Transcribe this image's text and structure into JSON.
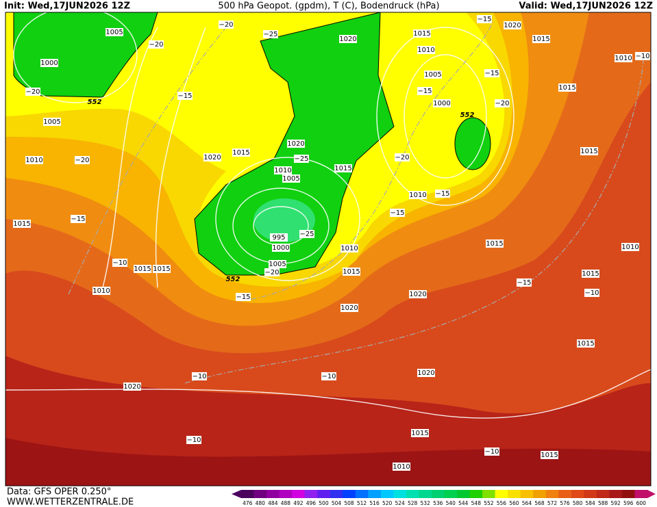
{
  "header": {
    "init": "Init: Wed,17JUN2026 12Z",
    "title": "500 hPa Geopot. (gpdm), T (C), Bodendruck (hPa)",
    "valid": "Valid: Wed,17JUN2026 12Z"
  },
  "footer": {
    "source": "Data: GFS OPER 0.250°",
    "site": "WWW.WETTERZENTRALE.DE"
  },
  "pressure_labels": [
    1005,
    1000,
    1005,
    1010,
    1015,
    1010,
    1015,
    1015,
    1020,
    1015,
    1020,
    1010,
    1005,
    995,
    1000,
    1005,
    1015,
    1020,
    1010,
    1015,
    1020,
    1020,
    1020,
    1015,
    1010,
    1020,
    1015,
    1010,
    1005,
    1000,
    1010,
    1015,
    1020,
    1015,
    1015,
    1015,
    1010,
    1010,
    1015,
    1015,
    1015
  ],
  "temperature_labels": [
    "−20",
    "−25",
    "−20",
    "−20",
    "−15",
    "−20",
    "−15",
    "−10",
    "−25",
    "−25",
    "−20",
    "−15",
    "−15",
    "−15",
    "−15",
    "−20",
    "−20",
    "−15",
    "−15",
    "−15",
    "−10",
    "−10",
    "−10",
    "−10",
    "−10",
    "−10"
  ],
  "geopotential_labels": [
    552,
    552,
    552
  ],
  "colorbar": {
    "labels": [
      476,
      480,
      484,
      488,
      492,
      496,
      500,
      504,
      508,
      512,
      516,
      520,
      524,
      528,
      532,
      536,
      540,
      544,
      548,
      552,
      556,
      560,
      564,
      568,
      572,
      576,
      580,
      584,
      588,
      592,
      596,
      600
    ],
    "colors": [
      "#4b0060",
      "#700080",
      "#9000a0",
      "#b000c0",
      "#d000e0",
      "#9020f0",
      "#6020f0",
      "#3030f0",
      "#0040ff",
      "#0070ff",
      "#00a0ff",
      "#00c8ff",
      "#00e0e0",
      "#00e0b0",
      "#00d890",
      "#00d070",
      "#00d050",
      "#00c830",
      "#20d000",
      "#80e000",
      "#ffff00",
      "#f8e000",
      "#f8c000",
      "#f0a000",
      "#f08010",
      "#e86018",
      "#e04818",
      "#d03818",
      "#c02818",
      "#a81818",
      "#901010",
      "#c0106a"
    ]
  }
}
